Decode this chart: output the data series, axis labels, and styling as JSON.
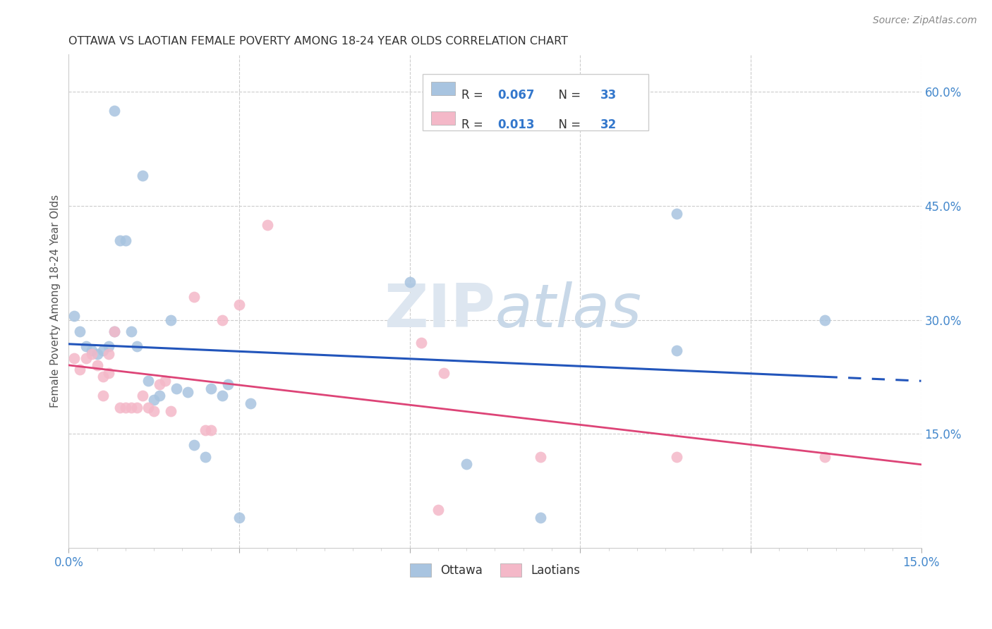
{
  "title": "OTTAWA VS LAOTIAN FEMALE POVERTY AMONG 18-24 YEAR OLDS CORRELATION CHART",
  "source": "Source: ZipAtlas.com",
  "ylabel": "Female Poverty Among 18-24 Year Olds",
  "xlim": [
    0.0,
    0.15
  ],
  "ylim": [
    0.0,
    0.65
  ],
  "ytick_vals_right": [
    0.15,
    0.3,
    0.45,
    0.6
  ],
  "ottawa_color": "#a8c4e0",
  "laotian_color": "#f4b8c8",
  "trend_ottawa_color": "#2255bb",
  "trend_laotian_color": "#dd4477",
  "legend_R_ottawa": "0.067",
  "legend_N_ottawa": "33",
  "legend_R_laotian": "0.013",
  "legend_N_laotian": "32",
  "ottawa_x": [
    0.001,
    0.008,
    0.013,
    0.002,
    0.003,
    0.004,
    0.005,
    0.006,
    0.007,
    0.008,
    0.009,
    0.01,
    0.011,
    0.012,
    0.014,
    0.015,
    0.016,
    0.018,
    0.019,
    0.021,
    0.022,
    0.024,
    0.025,
    0.027,
    0.028,
    0.03,
    0.032,
    0.06,
    0.07,
    0.083,
    0.107,
    0.107,
    0.133
  ],
  "ottawa_y": [
    0.305,
    0.575,
    0.49,
    0.285,
    0.265,
    0.26,
    0.255,
    0.26,
    0.265,
    0.285,
    0.405,
    0.405,
    0.285,
    0.265,
    0.22,
    0.195,
    0.2,
    0.3,
    0.21,
    0.205,
    0.135,
    0.12,
    0.21,
    0.2,
    0.215,
    0.04,
    0.19,
    0.35,
    0.11,
    0.04,
    0.44,
    0.26,
    0.3
  ],
  "laotian_x": [
    0.001,
    0.002,
    0.003,
    0.004,
    0.005,
    0.006,
    0.006,
    0.007,
    0.007,
    0.008,
    0.009,
    0.01,
    0.011,
    0.012,
    0.013,
    0.014,
    0.015,
    0.016,
    0.017,
    0.018,
    0.022,
    0.024,
    0.025,
    0.027,
    0.03,
    0.035,
    0.062,
    0.065,
    0.066,
    0.083,
    0.107,
    0.133
  ],
  "laotian_y": [
    0.25,
    0.235,
    0.25,
    0.255,
    0.24,
    0.225,
    0.2,
    0.255,
    0.23,
    0.285,
    0.185,
    0.185,
    0.185,
    0.185,
    0.2,
    0.185,
    0.18,
    0.215,
    0.22,
    0.18,
    0.33,
    0.155,
    0.155,
    0.3,
    0.32,
    0.425,
    0.27,
    0.05,
    0.23,
    0.12,
    0.12,
    0.12
  ]
}
